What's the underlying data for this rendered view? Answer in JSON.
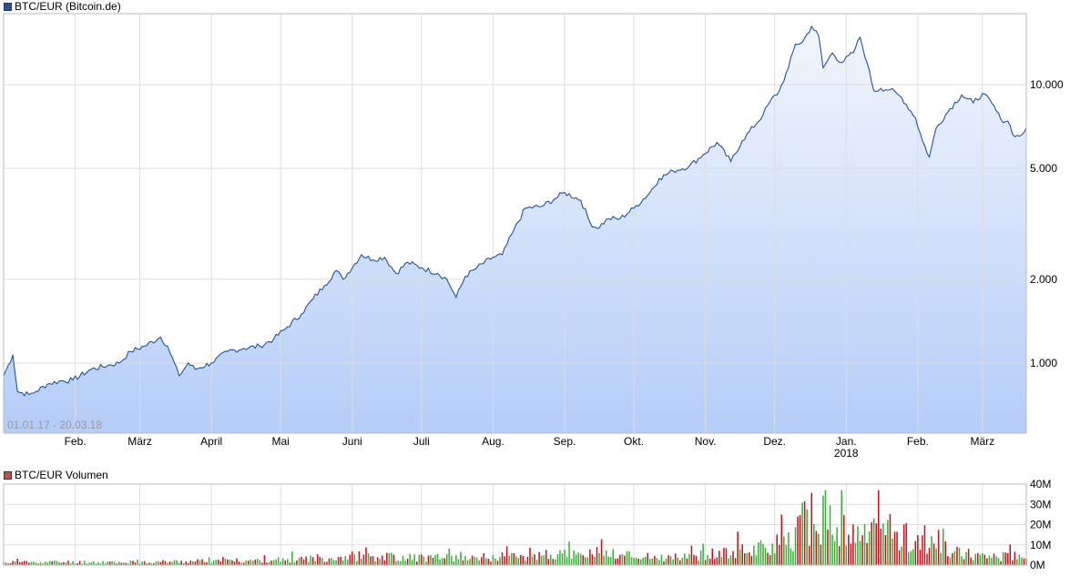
{
  "colors": {
    "price_line": "#1f52a8",
    "price_fill_top": "#f2f6fd",
    "price_fill_bottom": "#b4cdf7",
    "vol_up": "#33b233",
    "vol_down": "#c8101a",
    "grid": "#dddddd",
    "legend_price": "#1f52a8",
    "legend_volume": "#d44a4a"
  },
  "chart_data": [
    {
      "type": "area",
      "legend": "BTC/EUR (Bitcoin.de)",
      "date_range_label": "01.01.17 - 20.03.18",
      "y_scale": "log",
      "ylim": [
        560,
        18000
      ],
      "y_ticks": [
        {
          "value": 1000,
          "label": "1.000"
        },
        {
          "value": 2000,
          "label": "2.000"
        },
        {
          "value": 5000,
          "label": "5.000"
        },
        {
          "value": 10000,
          "label": "10.000"
        }
      ],
      "x_range": [
        "2017-01-01",
        "2018-03-20"
      ],
      "x_ticks": [
        {
          "date": "2017-02-01",
          "label": "Feb."
        },
        {
          "date": "2017-03-01",
          "label": "März"
        },
        {
          "date": "2017-04-01",
          "label": "April"
        },
        {
          "date": "2017-05-01",
          "label": "Mai"
        },
        {
          "date": "2017-06-01",
          "label": "Juni"
        },
        {
          "date": "2017-07-01",
          "label": "Juli"
        },
        {
          "date": "2017-08-01",
          "label": "Aug."
        },
        {
          "date": "2017-09-01",
          "label": "Sep."
        },
        {
          "date": "2017-10-01",
          "label": "Okt."
        },
        {
          "date": "2017-11-01",
          "label": "Nov."
        },
        {
          "date": "2017-12-01",
          "label": "Dez."
        },
        {
          "date": "2018-01-01",
          "label": "Jan.",
          "sublabel": "2018"
        },
        {
          "date": "2018-02-01",
          "label": "Feb."
        },
        {
          "date": "2018-03-01",
          "label": "März"
        }
      ],
      "grid": true,
      "series": [
        {
          "x": [
            "2017-01-01",
            "2017-01-05",
            "2017-01-07",
            "2017-01-12",
            "2017-01-15",
            "2017-01-20",
            "2017-01-25",
            "2017-01-31",
            "2017-02-08",
            "2017-02-15",
            "2017-02-20",
            "2017-02-25",
            "2017-03-03",
            "2017-03-10",
            "2017-03-13",
            "2017-03-18",
            "2017-03-22",
            "2017-03-25",
            "2017-04-01",
            "2017-04-08",
            "2017-04-15",
            "2017-04-22",
            "2017-04-28",
            "2017-05-04",
            "2017-05-10",
            "2017-05-15",
            "2017-05-20",
            "2017-05-25",
            "2017-05-28",
            "2017-06-05",
            "2017-06-10",
            "2017-06-15",
            "2017-06-20",
            "2017-06-25",
            "2017-07-01",
            "2017-07-08",
            "2017-07-12",
            "2017-07-16",
            "2017-07-20",
            "2017-07-25",
            "2017-08-01",
            "2017-08-05",
            "2017-08-10",
            "2017-08-15",
            "2017-08-22",
            "2017-08-28",
            "2017-09-01",
            "2017-09-08",
            "2017-09-12",
            "2017-09-15",
            "2017-09-20",
            "2017-09-25",
            "2017-10-01",
            "2017-10-08",
            "2017-10-12",
            "2017-10-18",
            "2017-10-25",
            "2017-10-31",
            "2017-11-06",
            "2017-11-12",
            "2017-11-17",
            "2017-11-26",
            "2017-11-29",
            "2017-12-03",
            "2017-12-07",
            "2017-12-10",
            "2017-12-13",
            "2017-12-17",
            "2017-12-20",
            "2017-12-22",
            "2017-12-26",
            "2017-12-30",
            "2018-01-04",
            "2018-01-07",
            "2018-01-10",
            "2018-01-13",
            "2018-01-16",
            "2018-01-20",
            "2018-01-25",
            "2018-01-31",
            "2018-02-03",
            "2018-02-06",
            "2018-02-09",
            "2018-02-15",
            "2018-02-20",
            "2018-02-25",
            "2018-03-01",
            "2018-03-05",
            "2018-03-09",
            "2018-03-12",
            "2018-03-15",
            "2018-03-18",
            "2018-03-20"
          ],
          "values": [
            900,
            1070,
            790,
            770,
            790,
            840,
            860,
            870,
            950,
            980,
            1000,
            1100,
            1150,
            1240,
            1150,
            900,
            1000,
            950,
            1000,
            1100,
            1130,
            1150,
            1220,
            1350,
            1500,
            1700,
            1900,
            2150,
            2000,
            2450,
            2350,
            2400,
            2100,
            2300,
            2200,
            2100,
            2000,
            1720,
            2050,
            2200,
            2400,
            2450,
            3000,
            3600,
            3650,
            3900,
            4100,
            3850,
            3200,
            3050,
            3300,
            3300,
            3600,
            4100,
            4600,
            4900,
            5100,
            5600,
            6200,
            5300,
            6300,
            7800,
            8700,
            9500,
            11500,
            14000,
            14200,
            16200,
            15000,
            11500,
            13000,
            12000,
            13000,
            14800,
            12000,
            9500,
            9700,
            9600,
            9000,
            7600,
            6300,
            5500,
            7000,
            8200,
            9200,
            8600,
            9300,
            8600,
            7500,
            7400,
            6500,
            6600,
            7000
          ]
        }
      ]
    },
    {
      "type": "bar",
      "legend": "BTC/EUR Volumen",
      "ylim": [
        0,
        40000000
      ],
      "y_ticks": [
        {
          "value": 0,
          "label": "0M"
        },
        {
          "value": 10000000,
          "label": "10M"
        },
        {
          "value": 20000000,
          "label": "20M"
        },
        {
          "value": 30000000,
          "label": "30M"
        },
        {
          "value": 40000000,
          "label": "40M"
        }
      ],
      "volume_profile_m": {
        "x": [
          "2017-01-01",
          "2017-03-01",
          "2017-05-01",
          "2017-06-01",
          "2017-07-15",
          "2017-08-15",
          "2017-09-15",
          "2017-10-15",
          "2017-11-15",
          "2017-12-05",
          "2017-12-12",
          "2017-12-20",
          "2017-12-28",
          "2018-01-08",
          "2018-01-17",
          "2018-02-06",
          "2018-02-20",
          "2018-03-20"
        ],
        "values": [
          1.5,
          1.5,
          2.5,
          4.5,
          3.5,
          4.5,
          6,
          3.5,
          7,
          11,
          20,
          26,
          17,
          14,
          18,
          10,
          6,
          4
        ]
      }
    }
  ]
}
